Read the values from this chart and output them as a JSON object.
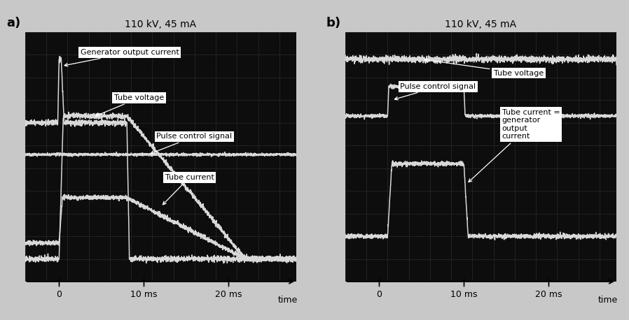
{
  "title_a": "110 kV, 45 mA",
  "title_b": "110 kV, 45 mA",
  "label_a": "a)",
  "label_b": "b)",
  "osc_bg": "#0d0d0d",
  "grid_color": "#2a2a2a",
  "line_color": "#d8d8d8",
  "fig_bg": "#c8c8c8",
  "xticks": [
    0,
    10,
    20
  ],
  "xticklabels": [
    "0",
    "10 ms",
    "20 ms"
  ],
  "xlim": [
    -4,
    28
  ],
  "ylim": [
    -0.5,
    10.5
  ]
}
